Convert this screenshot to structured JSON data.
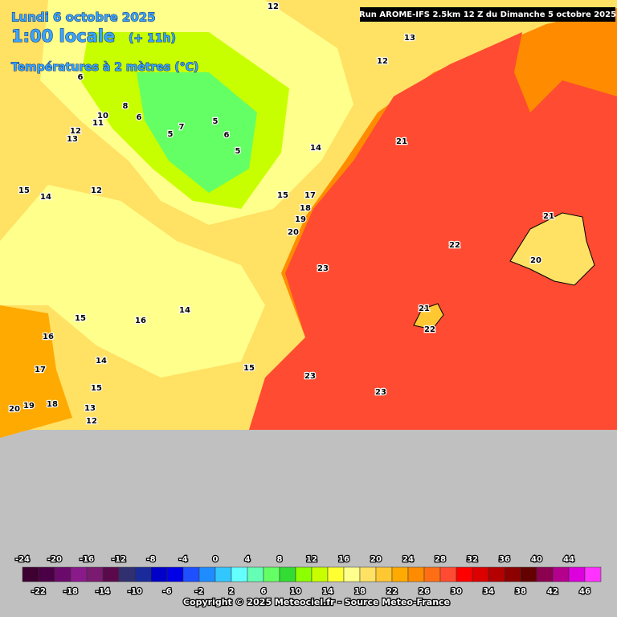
{
  "header": {
    "date": "Lundi 6 octobre 2025",
    "time": "1:00 locale",
    "offset": "(+ 11h)",
    "variable": "Températures à 2 mètres (°C)"
  },
  "run": "Run AROME-IFS 2.5km 12 Z du Dimanche 5 octobre 2025",
  "map_labels": [
    "12",
    "13",
    "12",
    "6",
    "8",
    "6",
    "10",
    "11",
    "12",
    "13",
    "7",
    "5",
    "5",
    "6",
    "5",
    "12",
    "14",
    "15",
    "14",
    "21",
    "15",
    "17",
    "18",
    "19",
    "20",
    "22",
    "23",
    "21",
    "20",
    "21",
    "22",
    "14",
    "15",
    "16",
    "16",
    "14",
    "17",
    "15",
    "23",
    "15",
    "23",
    "18",
    "19",
    "20",
    "13",
    "12"
  ],
  "colorbar": {
    "top_labels": [
      -24,
      -20,
      -16,
      -12,
      -8,
      -4,
      0,
      4,
      8,
      12,
      16,
      20,
      24,
      28,
      32,
      36,
      40,
      44
    ],
    "bottom_labels": [
      -22,
      -18,
      -14,
      -10,
      -6,
      -2,
      2,
      6,
      10,
      14,
      18,
      22,
      26,
      30,
      34,
      38,
      42,
      46
    ],
    "colors": [
      "#3d0030",
      "#4b0045",
      "#6a0a6a",
      "#8a1a8a",
      "#7a1a70",
      "#5a0a4a",
      "#303070",
      "#1a2a9a",
      "#0000c8",
      "#0000e6",
      "#1e50ff",
      "#1e8cff",
      "#32c8ff",
      "#64ffff",
      "#64ffb4",
      "#64ff64",
      "#32dc32",
      "#8cff00",
      "#c8ff00",
      "#ffff32",
      "#ffff8c",
      "#ffe164",
      "#ffc832",
      "#ffaa00",
      "#ff8c00",
      "#ff6e14",
      "#ff4b32",
      "#ff0000",
      "#dc0000",
      "#b40000",
      "#8c0000",
      "#640000",
      "#8c0050",
      "#b4008c",
      "#dc00dc",
      "#ff32ff"
    ]
  },
  "copyright": "Copyright © 2025 Meteociel.fr - Source Meteo-France"
}
